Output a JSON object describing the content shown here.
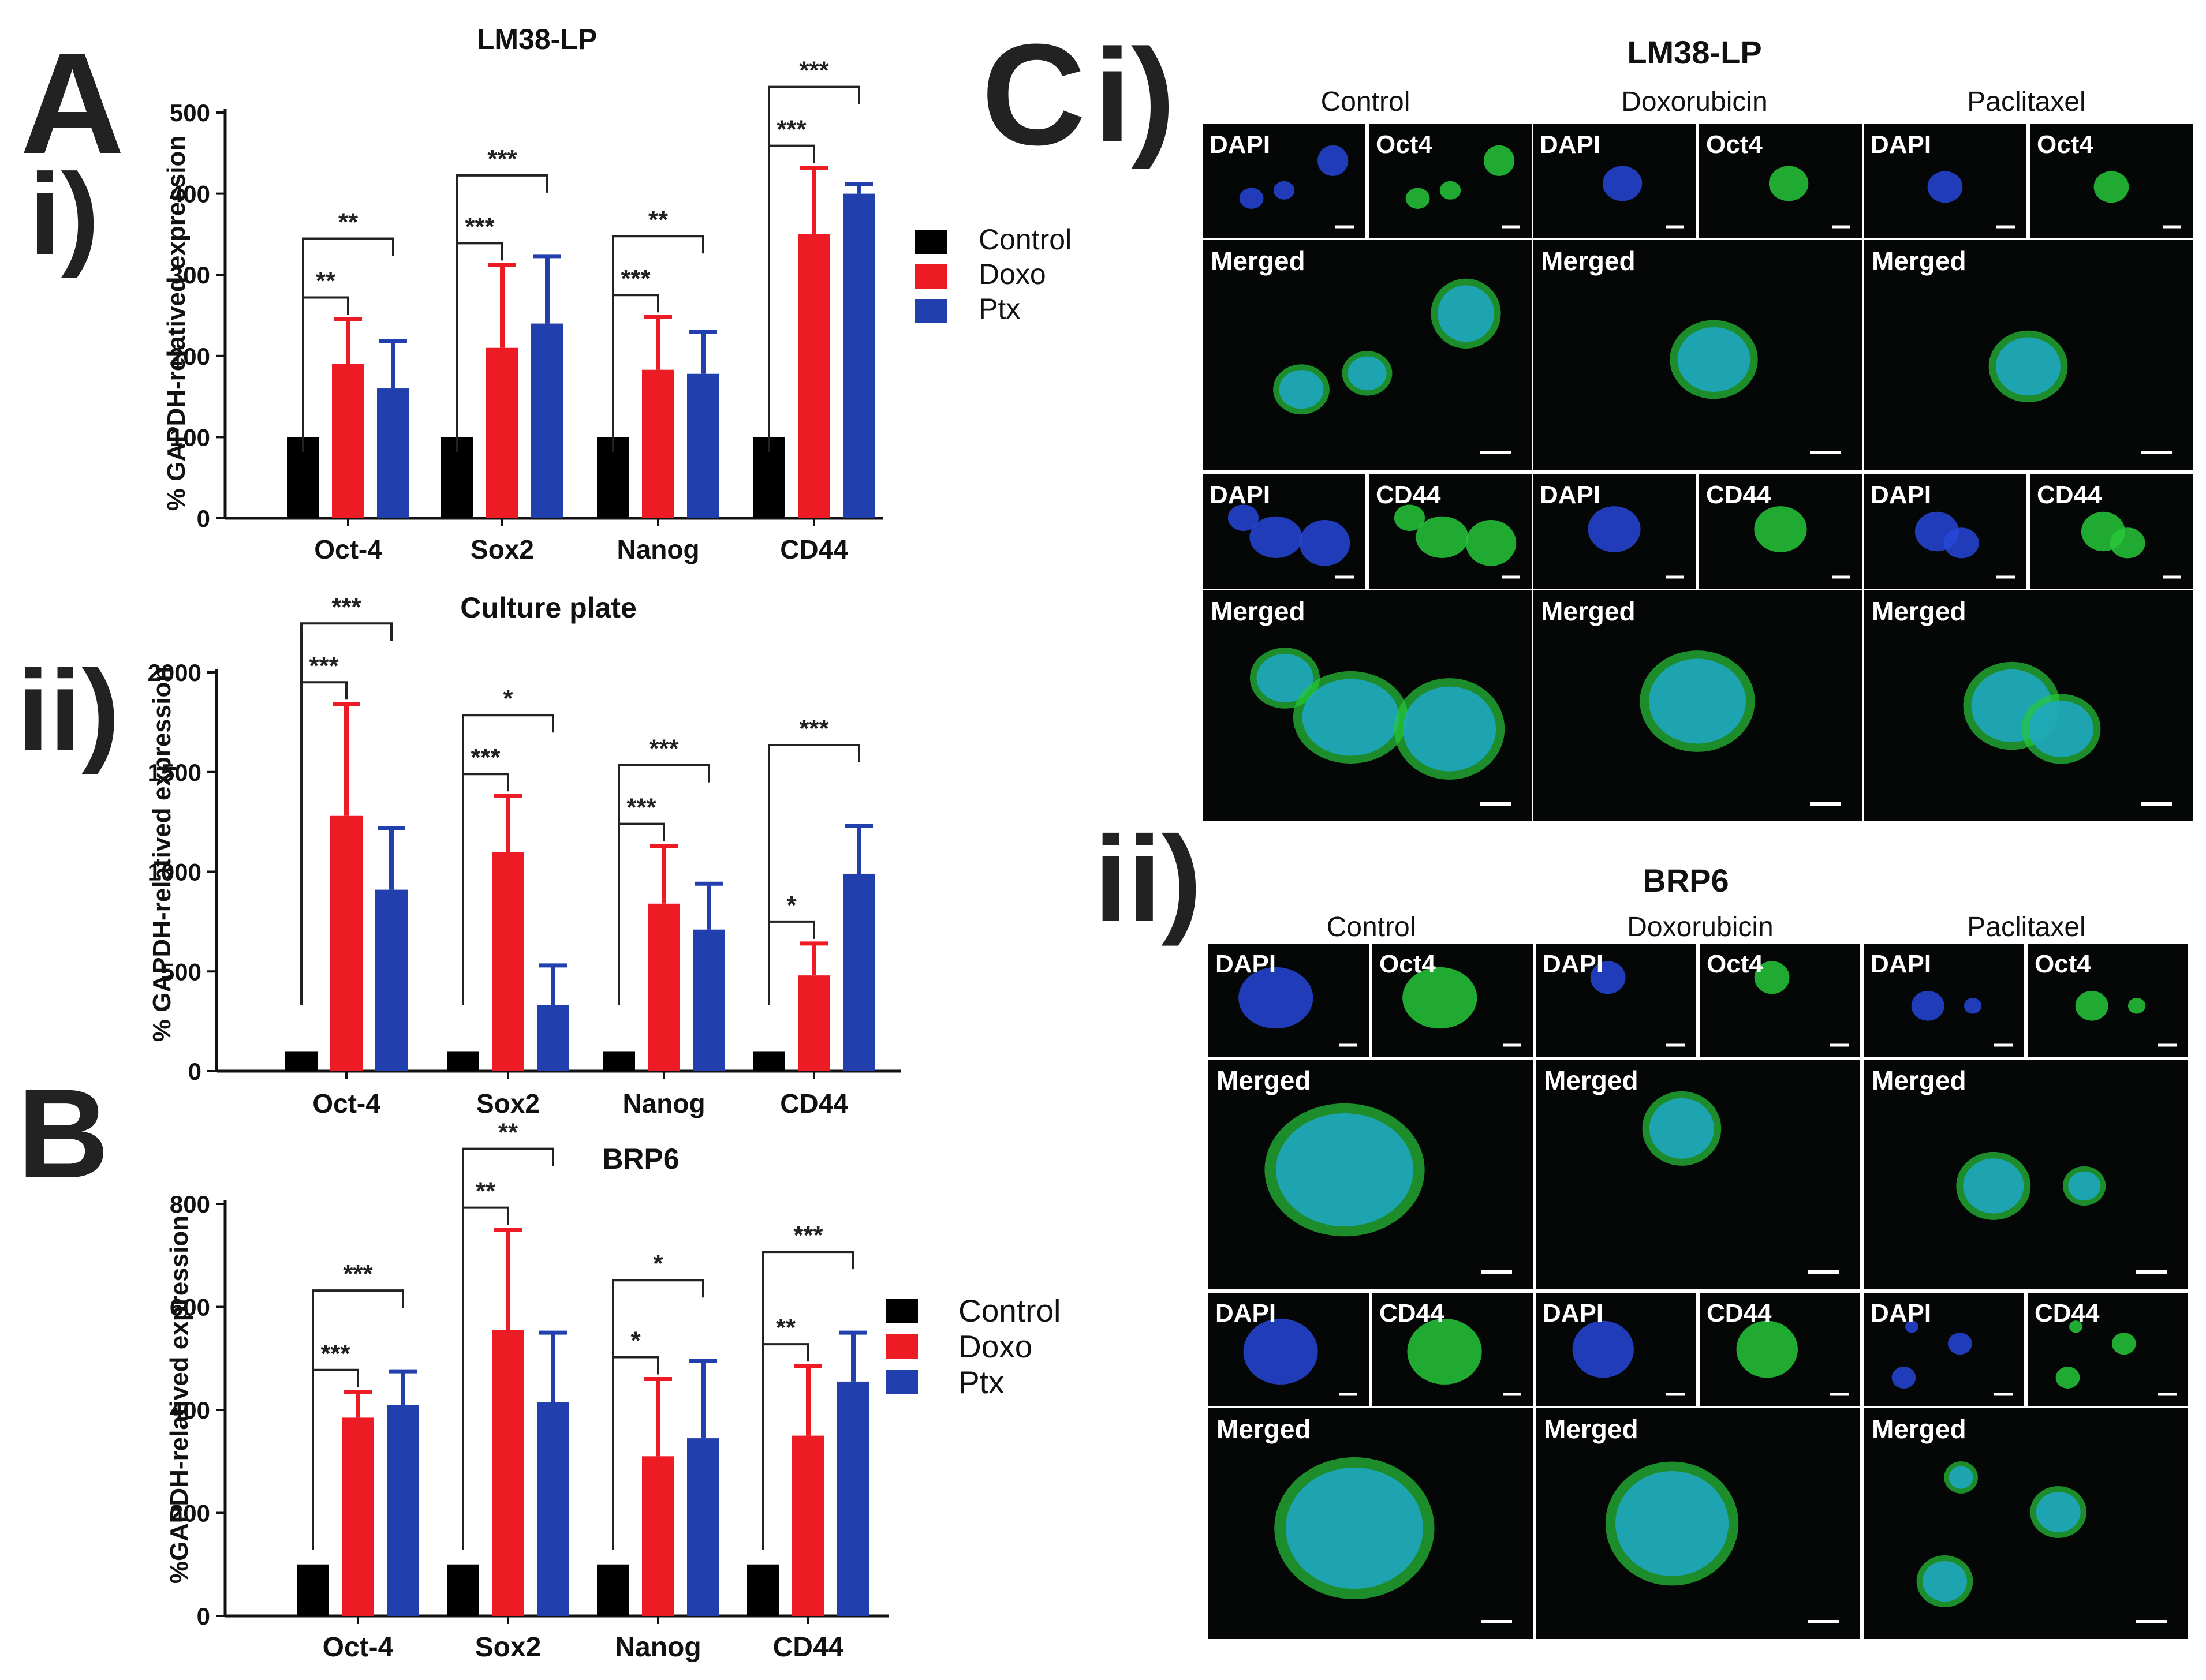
{
  "panel_letters": {
    "A": "A",
    "A_i": "i)",
    "A_ii": "ii)",
    "B": "B",
    "C": "C",
    "C_i": "i)",
    "C_ii": "ii)"
  },
  "colors": {
    "control": "#000000",
    "doxo": "#ed1c24",
    "ptx": "#2140ae",
    "micro_bg": "#050606",
    "dapi": "#2747d8",
    "green": "#27c83a",
    "merge": "#1ea7c8"
  },
  "legend": {
    "items": [
      {
        "label": "Control",
        "color": "#000000"
      },
      {
        "label": "Doxo",
        "color": "#ed1c24"
      },
      {
        "label": "Ptx",
        "color": "#2140ae"
      }
    ]
  },
  "chart_data": [
    {
      "id": "Ai",
      "type": "bar",
      "title": "LM38-LP",
      "ylabel": "% GAPDH-relatived expression",
      "xlabel": "",
      "categories": [
        "Oct-4",
        "Sox2",
        "Nanog",
        "CD44"
      ],
      "yticks": [
        0,
        100,
        200,
        300,
        400,
        500
      ],
      "ylim": [
        0,
        500
      ],
      "series": [
        {
          "name": "Control",
          "values": [
            100,
            100,
            100,
            100
          ],
          "errors": [
            0,
            0,
            0,
            0
          ]
        },
        {
          "name": "Doxo",
          "values": [
            190,
            210,
            183,
            350
          ],
          "errors": [
            55,
            102,
            65,
            82
          ]
        },
        {
          "name": "Ptx",
          "values": [
            160,
            240,
            178,
            400
          ],
          "errors": [
            58,
            83,
            52,
            12
          ]
        }
      ],
      "significance": [
        {
          "category": 0,
          "pair": "Doxo",
          "label": "**"
        },
        {
          "category": 0,
          "pair": "Ptx",
          "label": "**"
        },
        {
          "category": 1,
          "pair": "Doxo",
          "label": "***"
        },
        {
          "category": 1,
          "pair": "Ptx",
          "label": "***"
        },
        {
          "category": 2,
          "pair": "Doxo",
          "label": "***"
        },
        {
          "category": 2,
          "pair": "Ptx",
          "label": "**"
        },
        {
          "category": 3,
          "pair": "Doxo",
          "label": "***"
        },
        {
          "category": 3,
          "pair": "Ptx",
          "label": "***"
        }
      ]
    },
    {
      "id": "Aii",
      "type": "bar",
      "title": "Culture plate",
      "ylabel": "% GAPDH-relatived expression",
      "xlabel": "",
      "categories": [
        "Oct-4",
        "Sox2",
        "Nanog",
        "CD44"
      ],
      "yticks": [
        0,
        500,
        1000,
        1500,
        2000
      ],
      "ylim": [
        0,
        2000
      ],
      "series": [
        {
          "name": "Control",
          "values": [
            100,
            100,
            100,
            100
          ],
          "errors": [
            0,
            0,
            0,
            0
          ]
        },
        {
          "name": "Doxo",
          "values": [
            1280,
            1100,
            840,
            480
          ],
          "errors": [
            560,
            280,
            290,
            160
          ]
        },
        {
          "name": "Ptx",
          "values": [
            910,
            330,
            710,
            990
          ],
          "errors": [
            310,
            200,
            230,
            240
          ]
        }
      ],
      "significance": [
        {
          "category": 0,
          "pair": "Doxo",
          "label": "***"
        },
        {
          "category": 0,
          "pair": "Ptx",
          "label": "***"
        },
        {
          "category": 1,
          "pair": "Doxo",
          "label": "***"
        },
        {
          "category": 1,
          "pair": "Ptx",
          "label": "*"
        },
        {
          "category": 2,
          "pair": "Doxo",
          "label": "***"
        },
        {
          "category": 2,
          "pair": "Ptx",
          "label": "***"
        },
        {
          "category": 3,
          "pair": "Doxo",
          "label": "*"
        },
        {
          "category": 3,
          "pair": "Ptx",
          "label": "***"
        }
      ]
    },
    {
      "id": "B",
      "type": "bar",
      "title": "BRP6",
      "ylabel": "%GAPDH-relatived expression",
      "xlabel": "",
      "categories": [
        "Oct-4",
        "Sox2",
        "Nanog",
        "CD44"
      ],
      "yticks": [
        0,
        200,
        400,
        600,
        800
      ],
      "ylim": [
        0,
        800
      ],
      "series": [
        {
          "name": "Control",
          "values": [
            100,
            100,
            100,
            100
          ],
          "errors": [
            0,
            0,
            0,
            0
          ]
        },
        {
          "name": "Doxo",
          "values": [
            385,
            555,
            310,
            350
          ],
          "errors": [
            50,
            195,
            150,
            135
          ]
        },
        {
          "name": "Ptx",
          "values": [
            410,
            415,
            345,
            455
          ],
          "errors": [
            65,
            135,
            150,
            95
          ]
        }
      ],
      "significance": [
        {
          "category": 0,
          "pair": "Doxo",
          "label": "***"
        },
        {
          "category": 0,
          "pair": "Ptx",
          "label": "***"
        },
        {
          "category": 1,
          "pair": "Doxo",
          "label": "**"
        },
        {
          "category": 1,
          "pair": "Ptx",
          "label": "**"
        },
        {
          "category": 2,
          "pair": "Doxo",
          "label": "*"
        },
        {
          "category": 2,
          "pair": "Ptx",
          "label": "*"
        },
        {
          "category": 3,
          "pair": "Doxo",
          "label": "**"
        },
        {
          "category": 3,
          "pair": "Ptx",
          "label": "***"
        }
      ]
    }
  ],
  "micrographs": {
    "i": {
      "title": "LM38-LP",
      "columns": [
        "Control",
        "Doxorubicin",
        "Paclitaxel"
      ],
      "rows": [
        {
          "small_labels": [
            "DAPI",
            "Oct4"
          ],
          "merged_label": "Merged"
        },
        {
          "small_labels": [
            "DAPI",
            "CD44"
          ],
          "merged_label": "Merged"
        }
      ]
    },
    "ii": {
      "title": "BRP6",
      "columns": [
        "Control",
        "Doxorubicin",
        "Paclitaxel"
      ],
      "rows": [
        {
          "small_labels": [
            "DAPI",
            "Oct4"
          ],
          "merged_label": "Merged"
        },
        {
          "small_labels": [
            "DAPI",
            "CD44"
          ],
          "merged_label": "Merged"
        }
      ]
    }
  }
}
